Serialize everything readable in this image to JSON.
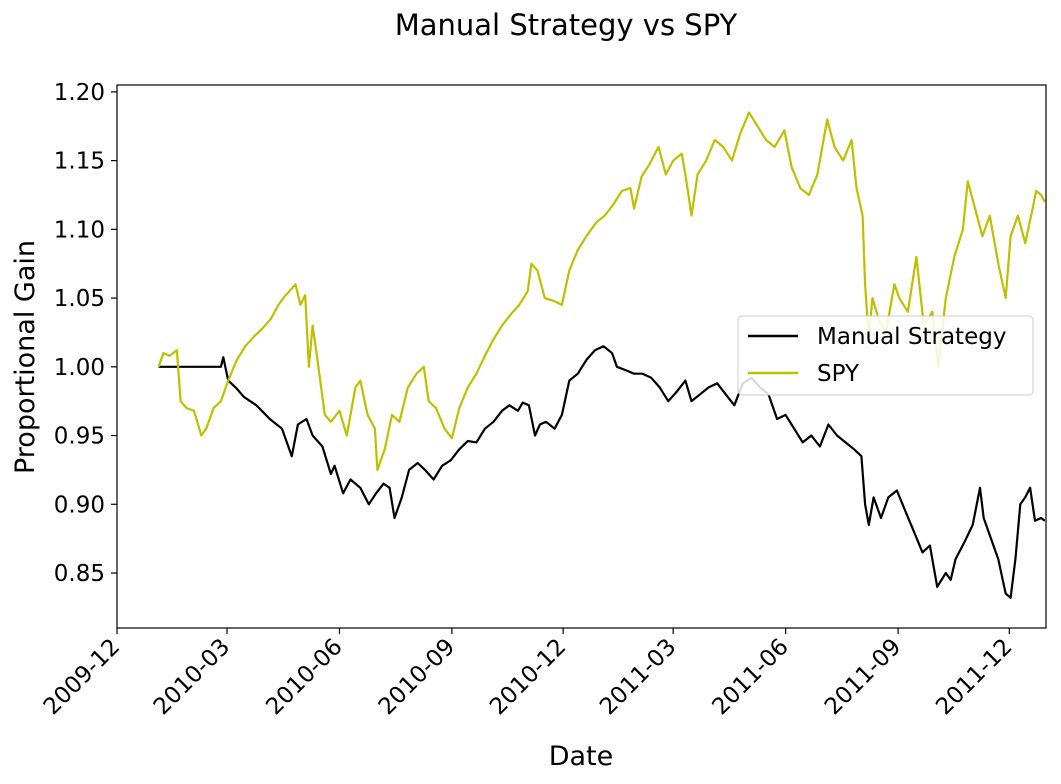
{
  "chart_data": {
    "type": "line",
    "title": "Manual Strategy vs SPY",
    "xlabel": "Date",
    "ylabel": "Proportional Gain",
    "xlim": [
      "2009-12-01",
      "2011-12-31"
    ],
    "ylim": [
      0.81,
      1.205
    ],
    "x_ticks": [
      "2009-12",
      "2010-03",
      "2010-06",
      "2010-09",
      "2010-12",
      "2011-03",
      "2011-06",
      "2011-09",
      "2011-12"
    ],
    "y_ticks": [
      "0.85",
      "0.90",
      "0.95",
      "1.00",
      "1.05",
      "1.10",
      "1.15",
      "1.20"
    ],
    "grid": false,
    "legend_position": "center-right",
    "series": [
      {
        "name": "Manual Strategy",
        "color": "#000000",
        "points": [
          [
            "2010-01-04",
            1.0
          ],
          [
            "2010-01-25",
            1.0
          ],
          [
            "2010-02-15",
            1.0
          ],
          [
            "2010-02-24",
            1.0
          ],
          [
            "2010-02-26",
            1.007
          ],
          [
            "2010-03-02",
            0.99
          ],
          [
            "2010-03-08",
            0.985
          ],
          [
            "2010-03-15",
            0.978
          ],
          [
            "2010-03-25",
            0.972
          ],
          [
            "2010-04-05",
            0.962
          ],
          [
            "2010-04-15",
            0.955
          ],
          [
            "2010-04-23",
            0.935
          ],
          [
            "2010-04-28",
            0.958
          ],
          [
            "2010-05-05",
            0.962
          ],
          [
            "2010-05-10",
            0.95
          ],
          [
            "2010-05-18",
            0.942
          ],
          [
            "2010-05-25",
            0.922
          ],
          [
            "2010-05-28",
            0.928
          ],
          [
            "2010-06-04",
            0.908
          ],
          [
            "2010-06-10",
            0.918
          ],
          [
            "2010-06-18",
            0.912
          ],
          [
            "2010-06-25",
            0.9
          ],
          [
            "2010-07-01",
            0.908
          ],
          [
            "2010-07-07",
            0.915
          ],
          [
            "2010-07-12",
            0.912
          ],
          [
            "2010-07-16",
            0.89
          ],
          [
            "2010-07-22",
            0.905
          ],
          [
            "2010-07-28",
            0.925
          ],
          [
            "2010-08-04",
            0.93
          ],
          [
            "2010-08-10",
            0.925
          ],
          [
            "2010-08-17",
            0.918
          ],
          [
            "2010-08-24",
            0.928
          ],
          [
            "2010-08-31",
            0.932
          ],
          [
            "2010-09-07",
            0.94
          ],
          [
            "2010-09-14",
            0.946
          ],
          [
            "2010-09-21",
            0.945
          ],
          [
            "2010-09-28",
            0.955
          ],
          [
            "2010-10-05",
            0.96
          ],
          [
            "2010-10-12",
            0.968
          ],
          [
            "2010-10-18",
            0.972
          ],
          [
            "2010-10-25",
            0.968
          ],
          [
            "2010-10-29",
            0.974
          ],
          [
            "2010-11-03",
            0.972
          ],
          [
            "2010-11-08",
            0.95
          ],
          [
            "2010-11-12",
            0.958
          ],
          [
            "2010-11-17",
            0.96
          ],
          [
            "2010-11-24",
            0.955
          ],
          [
            "2010-11-30",
            0.965
          ],
          [
            "2010-12-06",
            0.99
          ],
          [
            "2010-12-13",
            0.995
          ],
          [
            "2010-12-20",
            1.005
          ],
          [
            "2010-12-27",
            1.012
          ],
          [
            "2011-01-03",
            1.015
          ],
          [
            "2011-01-10",
            1.01
          ],
          [
            "2011-01-14",
            1.0
          ],
          [
            "2011-01-20",
            0.998
          ],
          [
            "2011-01-28",
            0.995
          ],
          [
            "2011-02-04",
            0.995
          ],
          [
            "2011-02-11",
            0.992
          ],
          [
            "2011-02-18",
            0.985
          ],
          [
            "2011-02-25",
            0.975
          ],
          [
            "2011-03-04",
            0.982
          ],
          [
            "2011-03-11",
            0.99
          ],
          [
            "2011-03-16",
            0.975
          ],
          [
            "2011-03-23",
            0.98
          ],
          [
            "2011-03-30",
            0.985
          ],
          [
            "2011-04-06",
            0.988
          ],
          [
            "2011-04-13",
            0.98
          ],
          [
            "2011-04-20",
            0.972
          ],
          [
            "2011-04-27",
            0.988
          ],
          [
            "2011-05-04",
            0.992
          ],
          [
            "2011-05-11",
            0.985
          ],
          [
            "2011-05-18",
            0.98
          ],
          [
            "2011-05-25",
            0.962
          ],
          [
            "2011-06-01",
            0.965
          ],
          [
            "2011-06-08",
            0.955
          ],
          [
            "2011-06-15",
            0.945
          ],
          [
            "2011-06-22",
            0.95
          ],
          [
            "2011-06-29",
            0.942
          ],
          [
            "2011-07-06",
            0.958
          ],
          [
            "2011-07-13",
            0.95
          ],
          [
            "2011-07-20",
            0.945
          ],
          [
            "2011-07-27",
            0.94
          ],
          [
            "2011-08-02",
            0.935
          ],
          [
            "2011-08-05",
            0.9
          ],
          [
            "2011-08-08",
            0.885
          ],
          [
            "2011-08-12",
            0.905
          ],
          [
            "2011-08-18",
            0.89
          ],
          [
            "2011-08-24",
            0.905
          ],
          [
            "2011-08-31",
            0.91
          ],
          [
            "2011-09-07",
            0.895
          ],
          [
            "2011-09-14",
            0.88
          ],
          [
            "2011-09-21",
            0.865
          ],
          [
            "2011-09-27",
            0.87
          ],
          [
            "2011-10-03",
            0.84
          ],
          [
            "2011-10-10",
            0.85
          ],
          [
            "2011-10-14",
            0.845
          ],
          [
            "2011-10-18",
            0.86
          ],
          [
            "2011-10-25",
            0.872
          ],
          [
            "2011-11-01",
            0.885
          ],
          [
            "2011-11-07",
            0.912
          ],
          [
            "2011-11-10",
            0.89
          ],
          [
            "2011-11-16",
            0.875
          ],
          [
            "2011-11-22",
            0.86
          ],
          [
            "2011-11-28",
            0.835
          ],
          [
            "2011-12-02",
            0.832
          ],
          [
            "2011-12-06",
            0.86
          ],
          [
            "2011-12-10",
            0.9
          ],
          [
            "2011-12-14",
            0.905
          ],
          [
            "2011-12-18",
            0.912
          ],
          [
            "2011-12-22",
            0.888
          ],
          [
            "2011-12-27",
            0.89
          ],
          [
            "2011-12-30",
            0.888
          ]
        ]
      },
      {
        "name": "SPY",
        "color": "#bfbf00",
        "points": [
          [
            "2010-01-04",
            1.0
          ],
          [
            "2010-01-08",
            1.01
          ],
          [
            "2010-01-13",
            1.008
          ],
          [
            "2010-01-19",
            1.012
          ],
          [
            "2010-01-22",
            0.975
          ],
          [
            "2010-01-27",
            0.97
          ],
          [
            "2010-02-02",
            0.968
          ],
          [
            "2010-02-08",
            0.95
          ],
          [
            "2010-02-12",
            0.955
          ],
          [
            "2010-02-18",
            0.97
          ],
          [
            "2010-02-24",
            0.975
          ],
          [
            "2010-03-02",
            0.99
          ],
          [
            "2010-03-09",
            1.005
          ],
          [
            "2010-03-16",
            1.015
          ],
          [
            "2010-03-23",
            1.022
          ],
          [
            "2010-03-30",
            1.028
          ],
          [
            "2010-04-06",
            1.035
          ],
          [
            "2010-04-12",
            1.045
          ],
          [
            "2010-04-16",
            1.05
          ],
          [
            "2010-04-21",
            1.055
          ],
          [
            "2010-04-26",
            1.06
          ],
          [
            "2010-04-30",
            1.045
          ],
          [
            "2010-05-04",
            1.052
          ],
          [
            "2010-05-07",
            1.0
          ],
          [
            "2010-05-10",
            1.03
          ],
          [
            "2010-05-14",
            1.005
          ],
          [
            "2010-05-20",
            0.965
          ],
          [
            "2010-05-25",
            0.96
          ],
          [
            "2010-06-01",
            0.968
          ],
          [
            "2010-06-07",
            0.95
          ],
          [
            "2010-06-14",
            0.985
          ],
          [
            "2010-06-18",
            0.99
          ],
          [
            "2010-06-24",
            0.965
          ],
          [
            "2010-06-30",
            0.955
          ],
          [
            "2010-07-02",
            0.925
          ],
          [
            "2010-07-08",
            0.94
          ],
          [
            "2010-07-14",
            0.965
          ],
          [
            "2010-07-20",
            0.96
          ],
          [
            "2010-07-27",
            0.985
          ],
          [
            "2010-08-03",
            0.995
          ],
          [
            "2010-08-09",
            1.0
          ],
          [
            "2010-08-13",
            0.975
          ],
          [
            "2010-08-19",
            0.97
          ],
          [
            "2010-08-26",
            0.955
          ],
          [
            "2010-09-01",
            0.948
          ],
          [
            "2010-09-07",
            0.97
          ],
          [
            "2010-09-14",
            0.985
          ],
          [
            "2010-09-21",
            0.995
          ],
          [
            "2010-09-28",
            1.008
          ],
          [
            "2010-10-05",
            1.02
          ],
          [
            "2010-10-12",
            1.03
          ],
          [
            "2010-10-19",
            1.038
          ],
          [
            "2010-10-26",
            1.045
          ],
          [
            "2010-11-02",
            1.055
          ],
          [
            "2010-11-05",
            1.075
          ],
          [
            "2010-11-10",
            1.07
          ],
          [
            "2010-11-16",
            1.05
          ],
          [
            "2010-11-23",
            1.048
          ],
          [
            "2010-11-30",
            1.045
          ],
          [
            "2010-12-06",
            1.07
          ],
          [
            "2010-12-13",
            1.085
          ],
          [
            "2010-12-20",
            1.095
          ],
          [
            "2010-12-28",
            1.105
          ],
          [
            "2011-01-04",
            1.11
          ],
          [
            "2011-01-11",
            1.118
          ],
          [
            "2011-01-18",
            1.128
          ],
          [
            "2011-01-25",
            1.13
          ],
          [
            "2011-01-28",
            1.115
          ],
          [
            "2011-02-03",
            1.138
          ],
          [
            "2011-02-10",
            1.148
          ],
          [
            "2011-02-17",
            1.16
          ],
          [
            "2011-02-23",
            1.14
          ],
          [
            "2011-03-01",
            1.15
          ],
          [
            "2011-03-08",
            1.155
          ],
          [
            "2011-03-11",
            1.14
          ],
          [
            "2011-03-16",
            1.11
          ],
          [
            "2011-03-21",
            1.14
          ],
          [
            "2011-03-28",
            1.15
          ],
          [
            "2011-04-04",
            1.165
          ],
          [
            "2011-04-11",
            1.16
          ],
          [
            "2011-04-18",
            1.15
          ],
          [
            "2011-04-25",
            1.17
          ],
          [
            "2011-05-02",
            1.185
          ],
          [
            "2011-05-09",
            1.175
          ],
          [
            "2011-05-16",
            1.165
          ],
          [
            "2011-05-23",
            1.16
          ],
          [
            "2011-05-31",
            1.172
          ],
          [
            "2011-06-06",
            1.145
          ],
          [
            "2011-06-13",
            1.13
          ],
          [
            "2011-06-20",
            1.125
          ],
          [
            "2011-06-27",
            1.14
          ],
          [
            "2011-07-05",
            1.18
          ],
          [
            "2011-07-11",
            1.16
          ],
          [
            "2011-07-18",
            1.15
          ],
          [
            "2011-07-25",
            1.165
          ],
          [
            "2011-07-29",
            1.13
          ],
          [
            "2011-08-03",
            1.11
          ],
          [
            "2011-08-05",
            1.06
          ],
          [
            "2011-08-08",
            1.02
          ],
          [
            "2011-08-11",
            1.05
          ],
          [
            "2011-08-16",
            1.035
          ],
          [
            "2011-08-22",
            1.025
          ],
          [
            "2011-08-29",
            1.06
          ],
          [
            "2011-09-02",
            1.05
          ],
          [
            "2011-09-09",
            1.04
          ],
          [
            "2011-09-16",
            1.08
          ],
          [
            "2011-09-22",
            1.03
          ],
          [
            "2011-09-29",
            1.04
          ],
          [
            "2011-10-04",
            1.0
          ],
          [
            "2011-10-10",
            1.05
          ],
          [
            "2011-10-17",
            1.08
          ],
          [
            "2011-10-24",
            1.1
          ],
          [
            "2011-10-28",
            1.135
          ],
          [
            "2011-11-03",
            1.115
          ],
          [
            "2011-11-09",
            1.095
          ],
          [
            "2011-11-15",
            1.11
          ],
          [
            "2011-11-22",
            1.075
          ],
          [
            "2011-11-28",
            1.05
          ],
          [
            "2011-12-02",
            1.095
          ],
          [
            "2011-12-08",
            1.11
          ],
          [
            "2011-12-14",
            1.09
          ],
          [
            "2011-12-20",
            1.115
          ],
          [
            "2011-12-23",
            1.128
          ],
          [
            "2011-12-27",
            1.125
          ],
          [
            "2011-12-30",
            1.12
          ]
        ]
      }
    ]
  }
}
